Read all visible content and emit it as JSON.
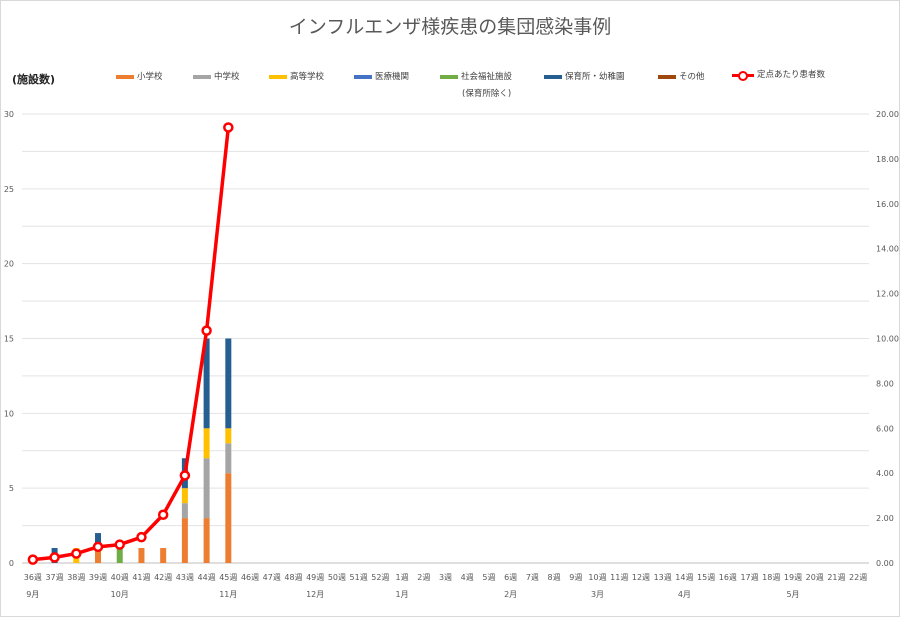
{
  "chart_data": {
    "type": "bar",
    "title": "インフルエンザ様疾患の集団感染事例",
    "ylabel": "(施設数)",
    "ylabel_right": "",
    "xlabel": "",
    "ylim": [
      0,
      30
    ],
    "y_ticks": [
      "0",
      "5",
      "10",
      "15",
      "20",
      "25",
      "30"
    ],
    "y2lim": [
      0,
      20
    ],
    "y2_ticks": [
      "0.00",
      "2.00",
      "4.00",
      "6.00",
      "8.00",
      "10.00",
      "12.00",
      "14.00",
      "16.00",
      "18.00",
      "20.00"
    ],
    "grid": true,
    "legend_position": "top",
    "legend_note": "(保育所除く)",
    "categories": [
      "36週",
      "37週",
      "38週",
      "39週",
      "40週",
      "41週",
      "42週",
      "43週",
      "44週",
      "45週",
      "46週",
      "47週",
      "48週",
      "49週",
      "50週",
      "51週",
      "52週",
      "1週",
      "2週",
      "3週",
      "4週",
      "5週",
      "6週",
      "7週",
      "8週",
      "9週",
      "10週",
      "11週",
      "12週",
      "13週",
      "14週",
      "15週",
      "16週",
      "17週",
      "18週",
      "19週",
      "20週",
      "21週",
      "22週"
    ],
    "month_labels": [
      {
        "index": 0,
        "label": "9月"
      },
      {
        "index": 4,
        "label": "10月"
      },
      {
        "index": 9,
        "label": "11月"
      },
      {
        "index": 13,
        "label": "12月"
      },
      {
        "index": 17,
        "label": "1月"
      },
      {
        "index": 22,
        "label": "2月"
      },
      {
        "index": 26,
        "label": "3月"
      },
      {
        "index": 30,
        "label": "4月"
      },
      {
        "index": 35,
        "label": "5月"
      }
    ],
    "series": [
      {
        "name": "小学校",
        "color": "#ed7d31",
        "values": [
          0,
          0,
          0,
          1,
          0,
          1,
          1,
          3,
          3,
          6,
          0,
          0,
          0,
          0,
          0,
          0,
          0,
          0,
          0,
          0,
          0,
          0,
          0,
          0,
          0,
          0,
          0,
          0,
          0,
          0,
          0,
          0,
          0,
          0,
          0,
          0,
          0,
          0,
          0
        ]
      },
      {
        "name": "中学校",
        "color": "#a5a5a5",
        "values": [
          0,
          0,
          0,
          0,
          0,
          0,
          0,
          1,
          4,
          2,
          0,
          0,
          0,
          0,
          0,
          0,
          0,
          0,
          0,
          0,
          0,
          0,
          0,
          0,
          0,
          0,
          0,
          0,
          0,
          0,
          0,
          0,
          0,
          0,
          0,
          0,
          0,
          0,
          0
        ]
      },
      {
        "name": "高等学校",
        "color": "#ffc000",
        "values": [
          0,
          0,
          1,
          0,
          0,
          0,
          0,
          1,
          2,
          1,
          0,
          0,
          0,
          0,
          0,
          0,
          0,
          0,
          0,
          0,
          0,
          0,
          0,
          0,
          0,
          0,
          0,
          0,
          0,
          0,
          0,
          0,
          0,
          0,
          0,
          0,
          0,
          0,
          0
        ]
      },
      {
        "name": "医療機関",
        "color": "#4472c4",
        "values": [
          0,
          0,
          0,
          0,
          0,
          0,
          0,
          0,
          0,
          0,
          0,
          0,
          0,
          0,
          0,
          0,
          0,
          0,
          0,
          0,
          0,
          0,
          0,
          0,
          0,
          0,
          0,
          0,
          0,
          0,
          0,
          0,
          0,
          0,
          0,
          0,
          0,
          0,
          0
        ]
      },
      {
        "name": "社会福祉施設",
        "color": "#70ad47",
        "values": [
          0,
          0,
          0,
          0,
          1,
          0,
          0,
          0,
          0,
          0,
          0,
          0,
          0,
          0,
          0,
          0,
          0,
          0,
          0,
          0,
          0,
          0,
          0,
          0,
          0,
          0,
          0,
          0,
          0,
          0,
          0,
          0,
          0,
          0,
          0,
          0,
          0,
          0,
          0
        ]
      },
      {
        "name": "保育所・幼稚園",
        "color": "#255e91",
        "values": [
          0,
          1,
          0,
          1,
          0,
          0,
          0,
          2,
          6,
          6,
          0,
          0,
          0,
          0,
          0,
          0,
          0,
          0,
          0,
          0,
          0,
          0,
          0,
          0,
          0,
          0,
          0,
          0,
          0,
          0,
          0,
          0,
          0,
          0,
          0,
          0,
          0,
          0,
          0
        ]
      },
      {
        "name": "その他",
        "color": "#9e480e",
        "values": [
          0,
          0,
          0,
          0,
          0,
          0,
          0,
          0,
          0,
          0,
          0,
          0,
          0,
          0,
          0,
          0,
          0,
          0,
          0,
          0,
          0,
          0,
          0,
          0,
          0,
          0,
          0,
          0,
          0,
          0,
          0,
          0,
          0,
          0,
          0,
          0,
          0,
          0,
          0
        ]
      }
    ],
    "line_series": {
      "name": "定点あたり患者数",
      "color": "#ff0000",
      "axis": "right",
      "values": [
        0.15,
        0.25,
        0.42,
        0.72,
        0.82,
        1.15,
        2.15,
        3.9,
        10.35,
        19.4
      ]
    }
  }
}
